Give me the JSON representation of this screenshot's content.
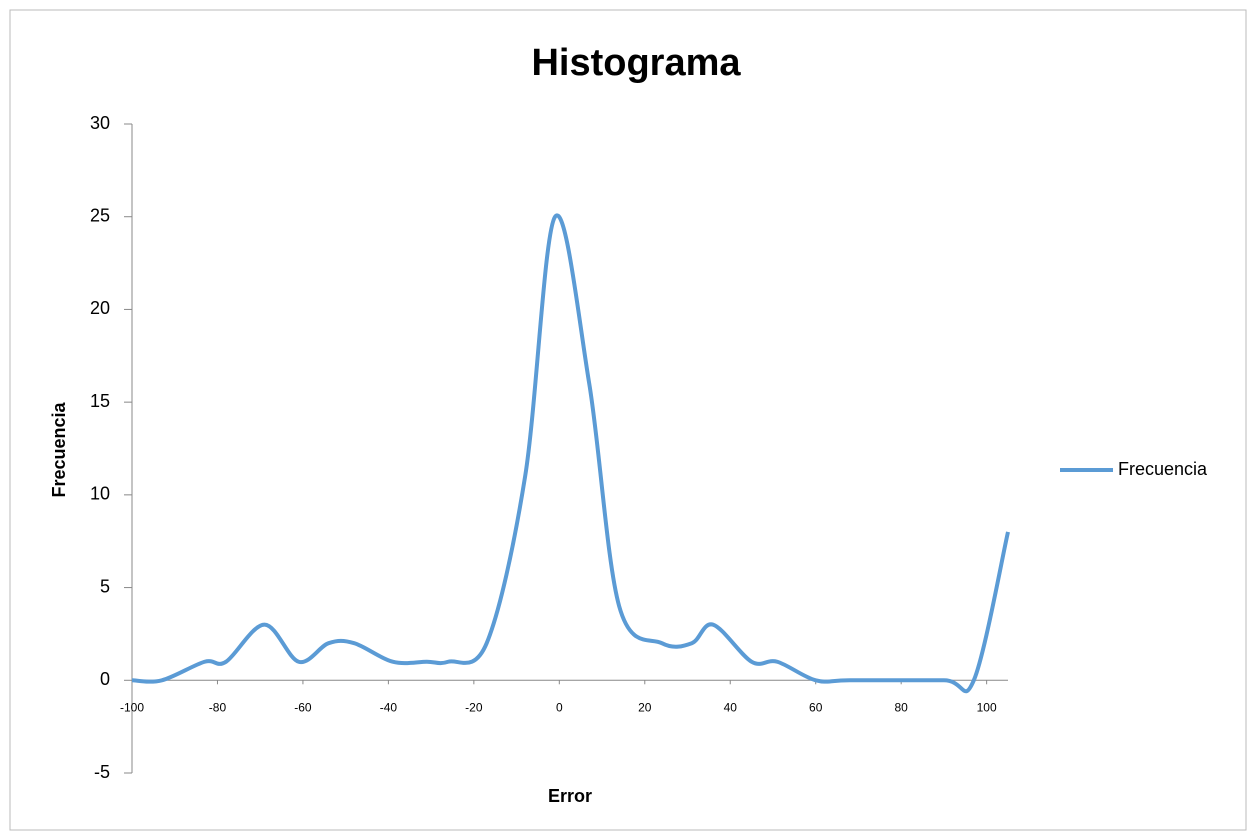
{
  "chart_data": {
    "type": "line",
    "title": "Histograma",
    "x_label": "Error",
    "y_label": "Frecuencia",
    "x": [
      -100,
      -93,
      -83,
      -78,
      -69,
      -61,
      -54,
      -48,
      -39,
      -31,
      -26,
      -17,
      -8,
      -1,
      7,
      14,
      24,
      31,
      36,
      45,
      51,
      60,
      68,
      90,
      97,
      105
    ],
    "series": [
      {
        "name": "Frecuencia",
        "color": "#5b9bd5",
        "values": [
          0,
          0,
          1,
          1,
          3,
          1,
          2,
          2,
          1,
          1,
          1,
          2,
          11,
          25,
          16,
          4,
          2,
          2,
          3,
          1,
          1,
          0,
          0,
          0,
          0,
          8
        ]
      }
    ],
    "xlim": [
      -100,
      105
    ],
    "xticks": [
      -100,
      -80,
      -60,
      -40,
      -20,
      0,
      20,
      40,
      60,
      80,
      100
    ],
    "ylim": [
      -5,
      30
    ],
    "yticks": [
      -5,
      0,
      5,
      10,
      15,
      20,
      25,
      30
    ],
    "legend": "right"
  }
}
